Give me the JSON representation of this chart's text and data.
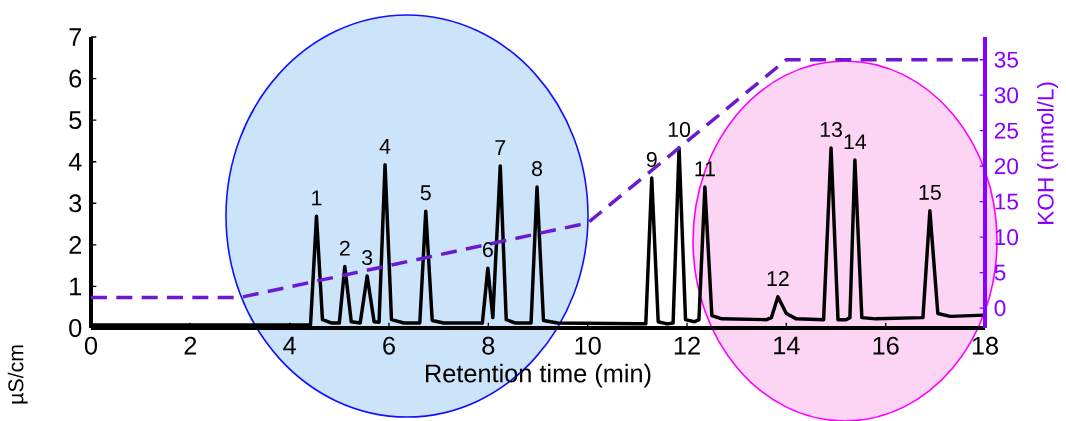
{
  "chart_data": {
    "type": "line",
    "xlabel": "Retention time (min)",
    "ylabel": "µS/cm",
    "y2label": "KOH (mmol/L)",
    "xlim": [
      0,
      18
    ],
    "xticks": [
      0,
      2,
      4,
      6,
      8,
      10,
      12,
      14,
      16,
      18
    ],
    "ylim": [
      0,
      7
    ],
    "yticks": [
      0,
      1,
      2,
      3,
      4,
      5,
      6,
      7
    ],
    "y2lim": [
      -2.8,
      38.2
    ],
    "y2ticks": [
      0,
      5,
      10,
      15,
      20,
      25,
      30,
      35
    ],
    "grid": false,
    "marker": "none",
    "series": [
      {
        "color": "#000000",
        "line_style": "solid",
        "x": [
          0,
          4.3,
          4.42,
          4.54,
          4.66,
          4.85,
          5.0,
          5.11,
          5.24,
          5.42,
          5.56,
          5.7,
          5.8,
          5.92,
          6.05,
          6.3,
          6.62,
          6.74,
          6.87,
          7.1,
          7.88,
          7.99,
          8.09,
          8.24,
          8.36,
          8.55,
          8.86,
          8.98,
          9.11,
          9.4,
          11.0,
          11.17,
          11.29,
          11.42,
          11.6,
          11.72,
          11.84,
          11.97,
          12.15,
          12.24,
          12.36,
          12.5,
          12.7,
          13.6,
          13.7,
          13.83,
          14.0,
          14.2,
          14.75,
          14.9,
          15.04,
          15.2,
          15.28,
          15.38,
          15.52,
          15.8,
          16.75,
          16.89,
          17.05,
          17.3,
          18
        ],
        "values": [
          0.07,
          0.07,
          0.08,
          2.69,
          0.2,
          0.12,
          0.12,
          1.48,
          0.15,
          0.12,
          1.25,
          0.15,
          0.14,
          3.93,
          0.2,
          0.12,
          0.12,
          2.81,
          0.18,
          0.12,
          0.12,
          1.44,
          0.25,
          3.9,
          0.2,
          0.12,
          0.12,
          3.39,
          0.18,
          0.12,
          0.1,
          0.1,
          3.61,
          0.15,
          0.1,
          0.12,
          4.33,
          0.2,
          0.15,
          0.2,
          3.39,
          0.3,
          0.22,
          0.2,
          0.25,
          0.75,
          0.35,
          0.22,
          0.2,
          4.33,
          0.2,
          0.2,
          0.25,
          4.04,
          0.25,
          0.22,
          0.25,
          2.82,
          0.35,
          0.28,
          0.31
        ]
      },
      {
        "color": "#6a1bd0",
        "axis": "y2",
        "line_style": "dashed",
        "x": [
          0,
          3,
          10,
          14,
          18
        ],
        "values": [
          1.5,
          1.5,
          12,
          35,
          35
        ]
      }
    ],
    "annotations": [
      {
        "text": "1",
        "x": 4.54,
        "y": 2.69
      },
      {
        "text": "2",
        "x": 5.11,
        "y": 1.48
      },
      {
        "text": "3",
        "x": 5.56,
        "y": 1.25
      },
      {
        "text": "4",
        "x": 5.92,
        "y": 3.93
      },
      {
        "text": "5",
        "x": 6.74,
        "y": 2.81
      },
      {
        "text": "6",
        "x": 7.99,
        "y": 1.44
      },
      {
        "text": "7",
        "x": 8.24,
        "y": 3.9
      },
      {
        "text": "8",
        "x": 8.98,
        "y": 3.39
      },
      {
        "text": "9",
        "x": 11.29,
        "y": 3.61
      },
      {
        "text": "10",
        "x": 11.84,
        "y": 4.33
      },
      {
        "text": "11",
        "x": 12.36,
        "y": 3.39
      },
      {
        "text": "12",
        "x": 13.83,
        "y": 0.75
      },
      {
        "text": "13",
        "x": 14.9,
        "y": 4.33
      },
      {
        "text": "14",
        "x": 15.38,
        "y": 4.04
      },
      {
        "text": "15",
        "x": 16.89,
        "y": 2.82
      }
    ]
  }
}
